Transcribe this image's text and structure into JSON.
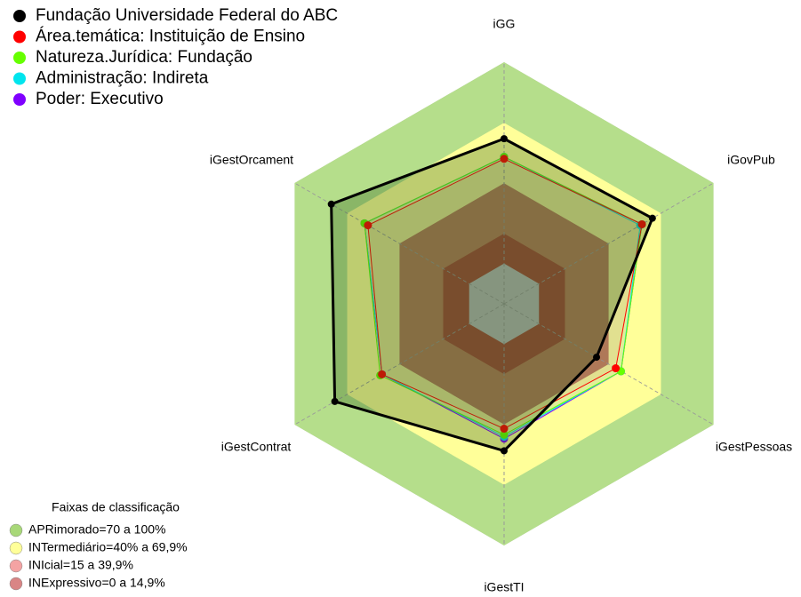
{
  "chart_data": {
    "type": "radar",
    "categories": [
      "iGG",
      "iGovPub",
      "iGestPessoas",
      "iGestTI",
      "iGestContrat",
      "iGestOrcament"
    ],
    "rlim": [
      -20,
      100
    ],
    "series": [
      {
        "name": "Fundação Universidade Federal do ABC",
        "color": "#000000",
        "values": [
          62,
          65,
          33,
          53,
          77,
          79
        ]
      },
      {
        "name": "Área.temática: Instituição de Ensino",
        "color": "#ff0000",
        "values": [
          52,
          59,
          44,
          42,
          50,
          58
        ]
      },
      {
        "name": "Natureza.Jurídica: Fundação",
        "color": "#66ff00",
        "values": [
          53,
          59,
          47,
          45,
          51,
          60
        ]
      },
      {
        "name": "Administração: Indireta",
        "color": "#00e5ee",
        "values": [
          53,
          58,
          47,
          46,
          50,
          60
        ]
      },
      {
        "name": "Poder: Executivo",
        "color": "#7f00ff",
        "values": [
          53,
          59,
          47,
          47,
          50,
          60
        ]
      }
    ],
    "bands_title": "Faixas de classificação",
    "bands": [
      {
        "label": "APRimorado=70 a 100%",
        "min": 70,
        "max": 100,
        "color": "#b5de8b",
        "legend_color": "#a8d878"
      },
      {
        "label": "INTermediário=40% a 69,9%",
        "min": 40,
        "max": 69.9,
        "color": "#ffff99",
        "legend_color": "#ffff99"
      },
      {
        "label": "INIcial=15 a 39,9%",
        "min": 15,
        "max": 39.9,
        "color": "#c17b52",
        "legend_color": "#f4a3a3"
      },
      {
        "label": "INExpressivo=0 a 14,9%",
        "min": 0,
        "max": 14.9,
        "color": "#a83d2a",
        "legend_color": "#d98585"
      }
    ]
  }
}
